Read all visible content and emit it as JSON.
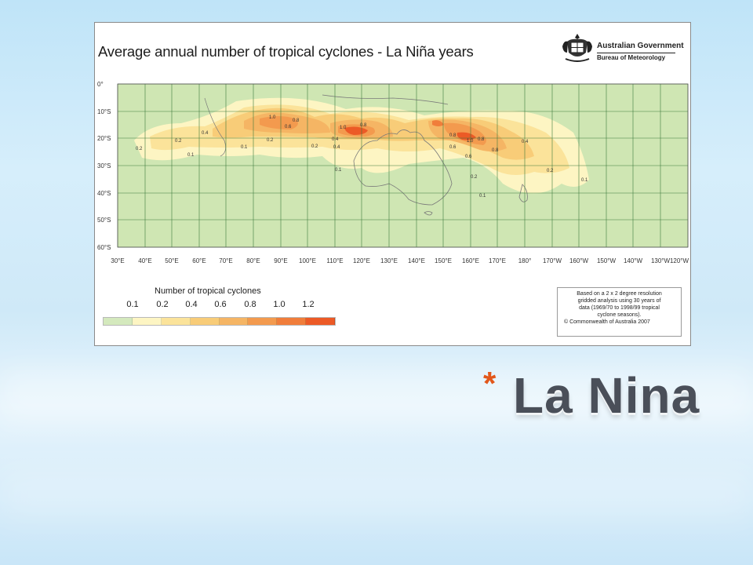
{
  "map": {
    "title": "Average annual number of tropical cyclones  -  La Niña years",
    "government": {
      "name": "Australian Government",
      "bureau": "Bureau of Meteorology",
      "crest_icon": "commonwealth-coat-of-arms-icon"
    },
    "latitude_labels": [
      "0°",
      "10°S",
      "20°S",
      "30°S",
      "40°S",
      "50°S",
      "60°S"
    ],
    "longitude_labels": [
      "30°E",
      "40°E",
      "50°E",
      "60°E",
      "70°E",
      "80°E",
      "90°E",
      "100°E",
      "110°E",
      "120°E",
      "130°E",
      "140°E",
      "150°E",
      "160°E",
      "170°E",
      "180°",
      "170°W",
      "160°W",
      "150°W",
      "140°W",
      "130°W",
      "120°W"
    ],
    "contour_labels": [
      "0.1",
      "0.2",
      "0.4",
      "0.6",
      "0.8",
      "1.0",
      "1.2"
    ],
    "colors": {
      "background_land_sea": "#cfe6b3",
      "grid": "#3c7a3c",
      "coast": "#7a7a7a"
    }
  },
  "legend": {
    "title": "Number of tropical cyclones",
    "values": [
      "0.1",
      "0.2",
      "0.4",
      "0.6",
      "0.8",
      "1.0",
      "1.2"
    ],
    "colors": [
      "#d4e9bd",
      "#fdf5c3",
      "#fbe39a",
      "#f8cc78",
      "#f5b564",
      "#f39a4e",
      "#f07d3b",
      "#ec5a26"
    ]
  },
  "note": {
    "lines": [
      "Based on a 2 x 2 degree resolution",
      "gridded analysis using 30 years of",
      "data (1969/70 to 1998/99 tropical",
      "cyclone seasons)."
    ],
    "copyright": "© Commonwealth of Australia 2007"
  },
  "slide": {
    "bullet_icon": "asterisk-bullet-icon",
    "title": "La Nina"
  }
}
